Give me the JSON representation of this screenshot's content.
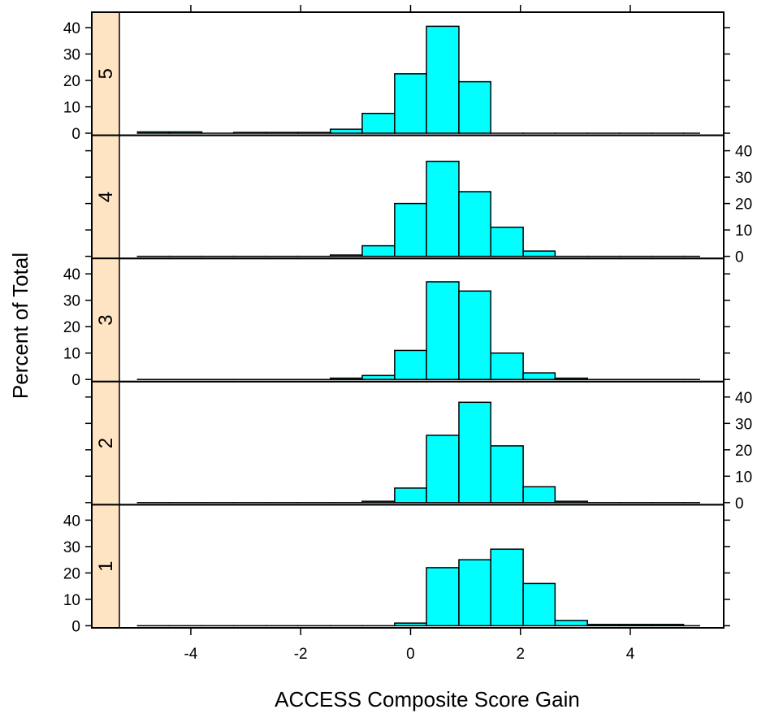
{
  "chart_data": {
    "type": "bar",
    "subtype": "histogram-lattice",
    "xlabel": "ACCESS Composite Score Gain",
    "ylabel": "Percent of Total",
    "xlim": [
      -5.3,
      5.7
    ],
    "ylim": [
      0,
      40
    ],
    "x_ticks": [
      -4,
      -2,
      0,
      2,
      4
    ],
    "x_tick_labels": [
      "-4",
      "-2",
      "0",
      "2",
      "4"
    ],
    "y_ticks": [
      0,
      10,
      20,
      30,
      40
    ],
    "y_tick_labels": [
      "0",
      "10",
      "20",
      "30",
      "40"
    ],
    "bin_edges": [
      -4.97,
      -4.39,
      -3.8,
      -3.22,
      -2.63,
      -2.05,
      -1.46,
      -0.88,
      -0.29,
      0.29,
      0.88,
      1.46,
      2.05,
      2.63,
      3.22,
      3.8,
      4.39,
      4.97,
      5.26
    ],
    "colors": {
      "bar_fill": "#00ffff",
      "strip_fill": "#ffe4c4",
      "frame": "#000000"
    },
    "grid": false,
    "legend": "none",
    "panels": [
      {
        "name": "5",
        "values": [
          0.5,
          0.5,
          0,
          0.3,
          0.3,
          0.3,
          1.5,
          7.5,
          22.5,
          40.5,
          19.5,
          0,
          0,
          0,
          0,
          0,
          0,
          0
        ]
      },
      {
        "name": "4",
        "values": [
          0,
          0,
          0,
          0,
          0,
          0,
          0.5,
          4,
          20,
          36,
          24.5,
          11,
          2,
          0,
          0,
          0,
          0,
          0
        ]
      },
      {
        "name": "3",
        "values": [
          0,
          0,
          0,
          0,
          0,
          0,
          0.5,
          1.5,
          11,
          37,
          33.5,
          10,
          2.5,
          0.5,
          0,
          0,
          0,
          0
        ]
      },
      {
        "name": "2",
        "values": [
          0,
          0,
          0,
          0,
          0,
          0,
          0,
          0.5,
          5.5,
          25.5,
          38,
          21.5,
          6,
          0.5,
          0,
          0,
          0,
          0
        ]
      },
      {
        "name": "1",
        "values": [
          0,
          0,
          0,
          0,
          0,
          0,
          0,
          0,
          1,
          22,
          25,
          29,
          16,
          2,
          0.5,
          0.5,
          0.5,
          0
        ]
      }
    ]
  }
}
